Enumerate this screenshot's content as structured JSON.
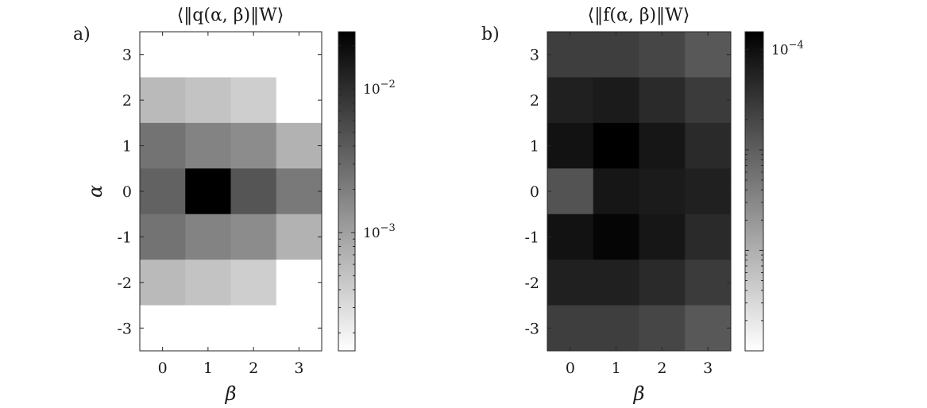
{
  "chart_data": [
    {
      "type": "heatmap",
      "panel_label": "a)",
      "title": "⟨‖q(α, β)‖W⟩",
      "xlabel": "β",
      "ylabel": "α",
      "x": [
        0,
        1,
        2,
        3
      ],
      "y": [
        3,
        2,
        1,
        0,
        -1,
        -2,
        -3
      ],
      "xticks": [
        "0",
        "1",
        "2",
        "3"
      ],
      "yticks": [
        "3",
        "2",
        "1",
        "0",
        "-1",
        "-2",
        "-3"
      ],
      "scale": "log",
      "colormap": "gray-reversed",
      "clim": [
        0.00015,
        0.025
      ],
      "colorbar_ticks": [
        {
          "value": 0.01,
          "base": "10",
          "exp": "−2"
        },
        {
          "value": 0.001,
          "base": "10",
          "exp": "−3"
        }
      ],
      "values": [
        [
          0.0,
          0.0,
          0.0,
          0.0
        ],
        [
          0.0006,
          0.0005,
          0.0004,
          0.0
        ],
        [
          0.0025,
          0.0018,
          0.0015,
          0.0007
        ],
        [
          0.0035,
          0.025,
          0.0045,
          0.0022
        ],
        [
          0.0025,
          0.0018,
          0.0015,
          0.0007
        ],
        [
          0.0006,
          0.0005,
          0.0004,
          0.0
        ],
        [
          0.0,
          0.0,
          0.0,
          0.0
        ]
      ]
    },
    {
      "type": "heatmap",
      "panel_label": "b)",
      "title": "⟨‖f(α, β)‖W⟩",
      "xlabel": "β",
      "ylabel": "",
      "x": [
        0,
        1,
        2,
        3
      ],
      "y": [
        3,
        2,
        1,
        0,
        -1,
        -2,
        -3
      ],
      "xticks": [
        "0",
        "1",
        "2",
        "3"
      ],
      "yticks": [
        "3",
        "2",
        "1",
        "0",
        "-1",
        "-2",
        "-3"
      ],
      "scale": "log",
      "colormap": "gray-reversed",
      "clim": [
        1e-07,
        0.00015
      ],
      "colorbar_ticks": [
        {
          "value": 0.0001,
          "base": "10",
          "exp": "−4"
        }
      ],
      "values": [
        [
          2.5e-05,
          2.5e-05,
          2e-05,
          1.2e-05
        ],
        [
          6e-05,
          7e-05,
          4.5e-05,
          2.8e-05
        ],
        [
          9e-05,
          0.00015,
          8e-05,
          4.5e-05
        ],
        [
          1.4e-05,
          8e-05,
          7e-05,
          6e-05
        ],
        [
          9e-05,
          0.00013,
          8e-05,
          4.5e-05
        ],
        [
          6e-05,
          6e-05,
          4.5e-05,
          2.8e-05
        ],
        [
          2.5e-05,
          2.5e-05,
          2e-05,
          1.2e-05
        ]
      ]
    }
  ]
}
